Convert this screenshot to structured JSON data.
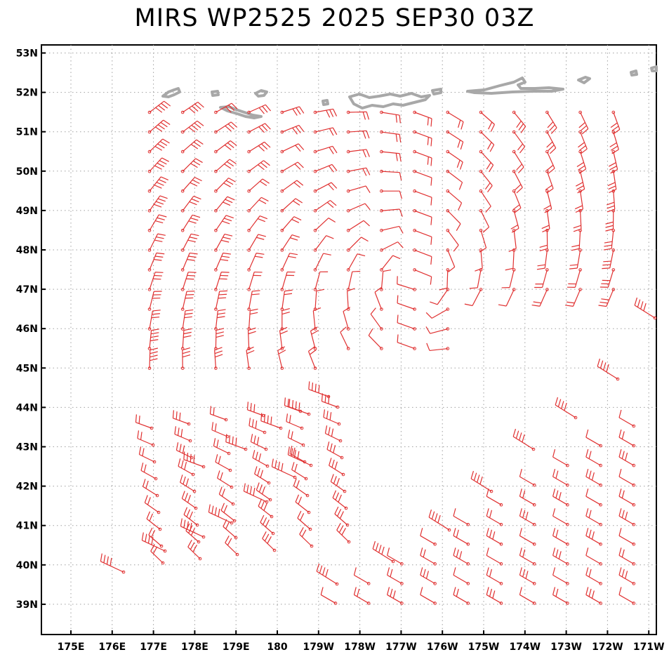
{
  "title": "MIRS WP2525 2025 SEP30 03Z",
  "lat_labels": [
    "53N",
    "52N",
    "51N",
    "50N",
    "49N",
    "48N",
    "47N",
    "46N",
    "45N",
    "44N",
    "43N",
    "42N",
    "41N",
    "40N",
    "39N"
  ],
  "lon_labels": [
    "175E",
    "176E",
    "177E",
    "178E",
    "179E",
    "180",
    "179W",
    "178W",
    "177W",
    "176W",
    "175W",
    "174W",
    "173W",
    "172W",
    "171W"
  ],
  "colors": {
    "barb": "#e03030",
    "coast": "#a8a8a8",
    "grid": "#a0a0a0",
    "frame": "#000000"
  },
  "map_extent": {
    "lon_min": 174.3,
    "lon_max": 189.7,
    "lat_min": 38.2,
    "lat_max": 53.2
  }
}
